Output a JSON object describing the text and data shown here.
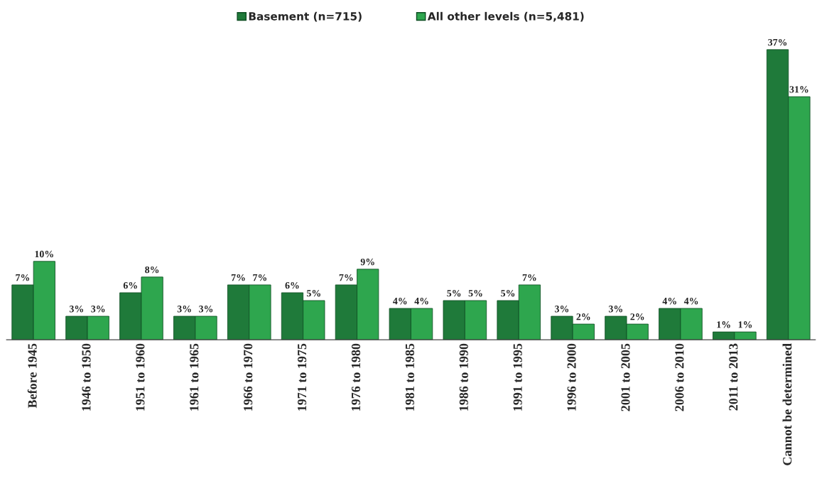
{
  "chart_data": {
    "type": "bar",
    "categories": [
      "Before 1945",
      "1946 to 1950",
      "1951 to 1960",
      "1961 to 1965",
      "1966 to 1970",
      "1971 to 1975",
      "1976 to 1980",
      "1981 to 1985",
      "1986 to 1990",
      "1991 to 1995",
      "1996 to 2000",
      "2001 to 2005",
      "2006 to 2010",
      "2011 to 2013",
      "Cannot be determined"
    ],
    "series": [
      {
        "name": "Basement (n=715)",
        "color": "#1f7a3a",
        "values": [
          7,
          3,
          6,
          3,
          7,
          6,
          7,
          4,
          5,
          5,
          3,
          3,
          4,
          1,
          37
        ],
        "value_labels": [
          "7%",
          "3%",
          "6%",
          "3%",
          "7%",
          "6%",
          "7%",
          "4%",
          "5%",
          "5%",
          "3%",
          "3%",
          "4%",
          "1%",
          "37%"
        ]
      },
      {
        "name": "All other levels (n=5,481)",
        "color": "#2ea64e",
        "values": [
          10,
          3,
          8,
          3,
          7,
          5,
          9,
          4,
          5,
          7,
          2,
          2,
          4,
          1,
          31
        ],
        "value_labels": [
          "10%",
          "3%",
          "8%",
          "3%",
          "7%",
          "5%",
          "9%",
          "4%",
          "5%",
          "7%",
          "2%",
          "2%",
          "4%",
          "1%",
          "31%"
        ]
      }
    ],
    "legend": "top",
    "tick_labels": "x"
  }
}
